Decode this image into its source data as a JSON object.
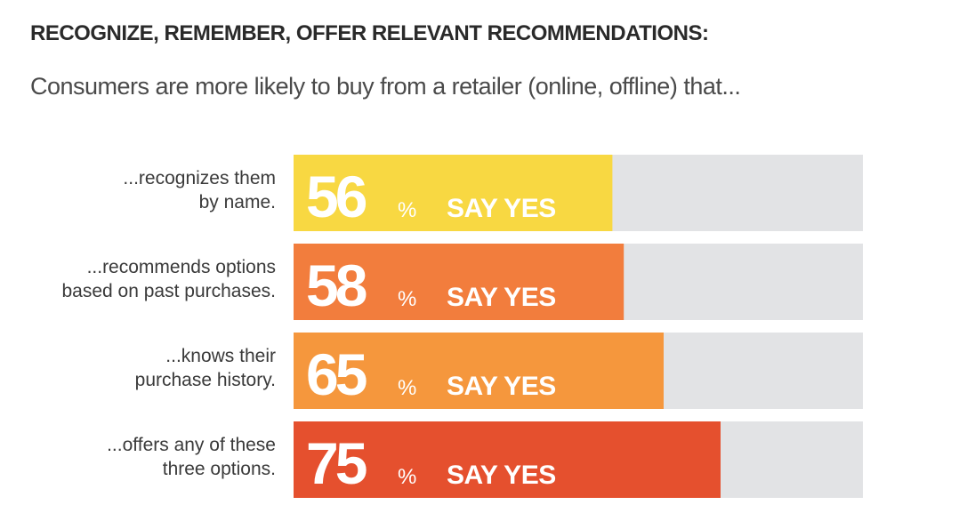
{
  "header": {
    "title": "RECOGNIZE, REMEMBER, OFFER RELEVANT RECOMMENDATIONS:",
    "subtitle": "Consumers are more likely to buy from a retailer (online, offline) that..."
  },
  "chart_data": {
    "type": "bar",
    "orientation": "horizontal",
    "xlim": [
      0,
      100
    ],
    "grid": false,
    "value_suffix": "%",
    "value_caption": "SAY YES",
    "track_color": "#e2e3e5",
    "categories": [
      [
        "...recognizes them",
        "by name."
      ],
      [
        "...recommends options",
        "based on past purchases."
      ],
      [
        "...knows their",
        "purchase history."
      ],
      [
        "...offers any of these",
        "three options."
      ]
    ],
    "values": [
      56,
      58,
      65,
      75
    ],
    "colors": [
      "#f8d842",
      "#f27d3d",
      "#f5973d",
      "#e5502e"
    ]
  }
}
